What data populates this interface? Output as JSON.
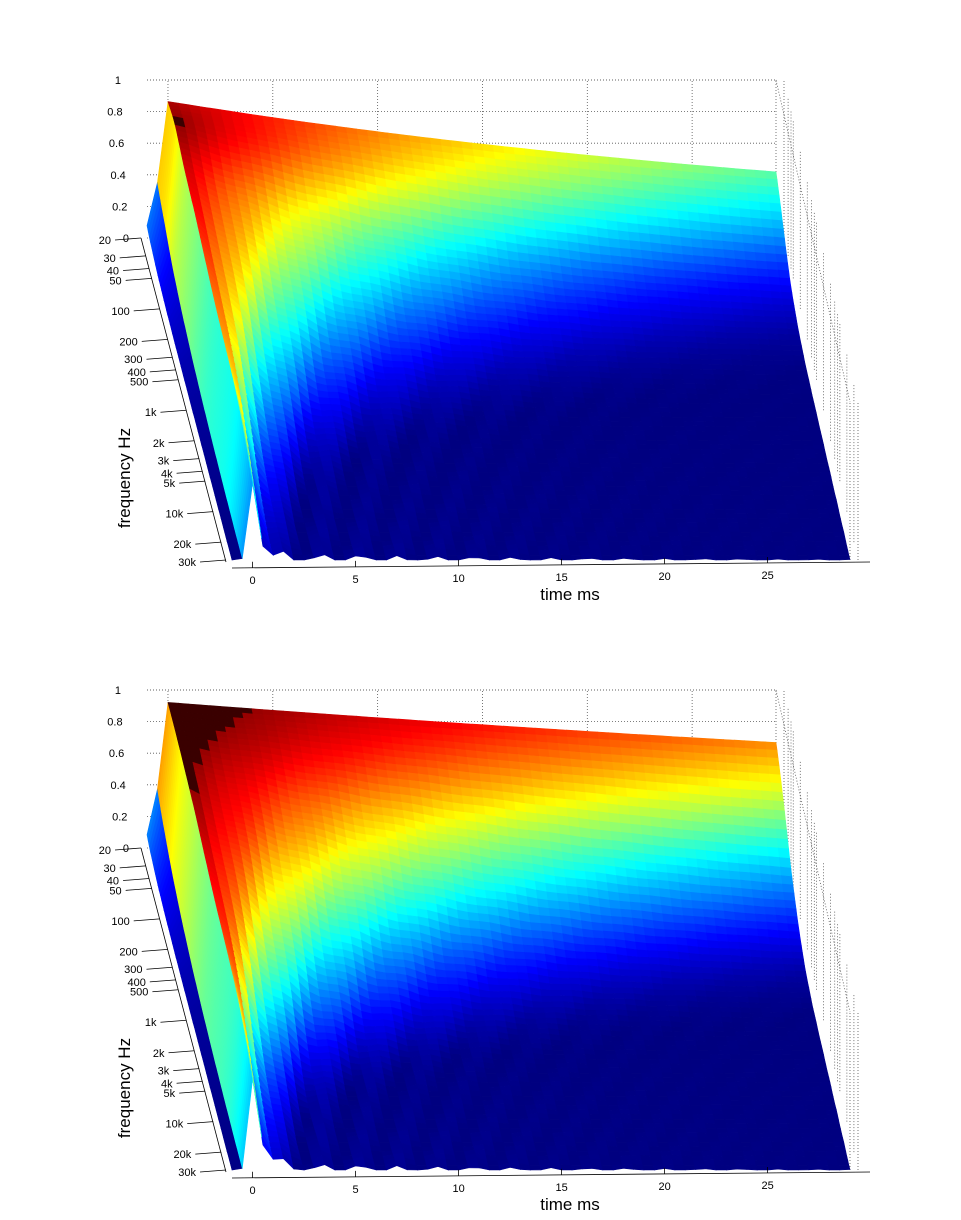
{
  "chart_data": [
    {
      "type": "surface",
      "title": "",
      "xlabel": "time   ms",
      "ylabel": "frequency   Hz",
      "zlabel": "",
      "x_ticks": [
        "0",
        "5",
        "10",
        "15",
        "20",
        "25"
      ],
      "y_ticks": [
        "20",
        "30",
        "40",
        "50",
        "100",
        "200",
        "300",
        "400",
        "500",
        "1k",
        "2k",
        "3k",
        "4k",
        "5k",
        "10k",
        "20k",
        "30k"
      ],
      "z_ticks": [
        "0",
        "0.2",
        "0.4",
        "0.6",
        "0.8",
        "1"
      ],
      "xlim": [
        -1,
        29
      ],
      "ylim": [
        20,
        30000
      ],
      "zlim": [
        0,
        1
      ],
      "y_scale": "log",
      "grid": "dotted",
      "colormap": "jet",
      "peak_level": 0.9,
      "low_freq_level": 0.85,
      "decay_ms": [
        40,
        14,
        6,
        2.5,
        1.0,
        0.4
      ]
    },
    {
      "type": "surface",
      "title": "",
      "xlabel": "time   ms",
      "ylabel": "frequency   Hz",
      "zlabel": "",
      "x_ticks": [
        "0",
        "5",
        "10",
        "15",
        "20",
        "25"
      ],
      "y_ticks": [
        "20",
        "30",
        "40",
        "50",
        "100",
        "200",
        "300",
        "400",
        "500",
        "1k",
        "2k",
        "3k",
        "4k",
        "5k",
        "10k",
        "20k",
        "30k"
      ],
      "z_ticks": [
        "0",
        "0.2",
        "0.4",
        "0.6",
        "0.8",
        "1"
      ],
      "xlim": [
        -1,
        29
      ],
      "ylim": [
        20,
        30000
      ],
      "zlim": [
        0,
        1
      ],
      "y_scale": "log",
      "grid": "dotted",
      "colormap": "jet",
      "peak_level": 0.93,
      "low_freq_level": 0.92,
      "decay_ms": [
        90,
        25,
        9,
        3.5,
        1.2,
        0.5
      ]
    }
  ]
}
